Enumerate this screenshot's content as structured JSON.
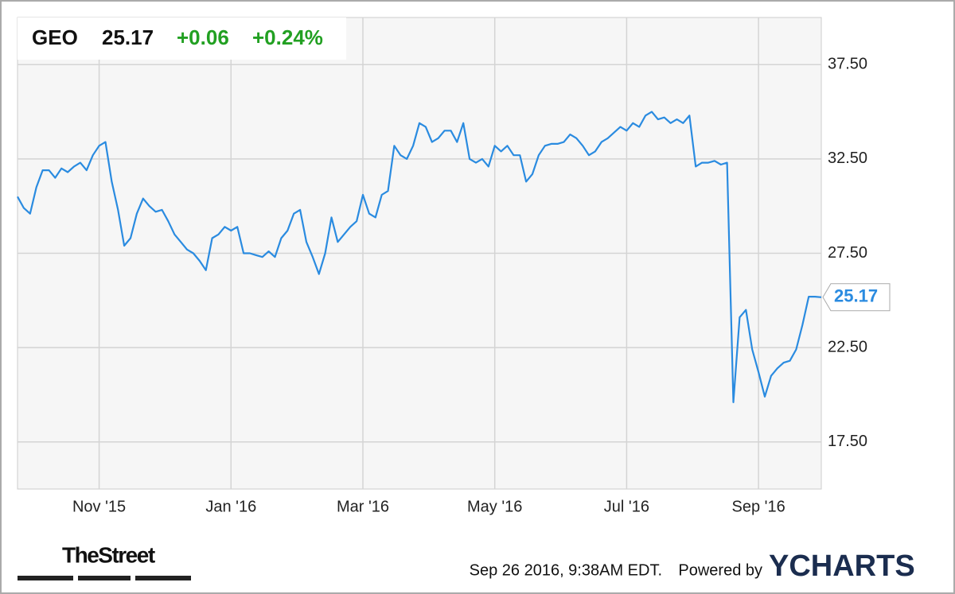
{
  "ticker": "GEO",
  "price": 25.17,
  "change": "+0.06",
  "change_pct": "+0.24%",
  "footer": {
    "brand": "TheStreet",
    "timestamp": "Sep 26 2016, 9:38AM EDT.",
    "powered": "Powered by",
    "provider": "YCHARTS"
  },
  "chart_data": {
    "type": "line",
    "color": "#2a8be0",
    "grid": true,
    "ylim": [
      15,
      40
    ],
    "yticks": [
      {
        "value": 17.5,
        "label": "17.50"
      },
      {
        "value": 22.5,
        "label": "22.50"
      },
      {
        "value": 27.5,
        "label": "27.50"
      },
      {
        "value": 32.5,
        "label": "32.50"
      },
      {
        "value": 37.5,
        "label": "37.50"
      }
    ],
    "categories": [
      null,
      null,
      null,
      null,
      null,
      null,
      null,
      null,
      null,
      null,
      null,
      null,
      null,
      "Nov '15",
      null,
      null,
      null,
      null,
      null,
      null,
      null,
      null,
      null,
      null,
      null,
      null,
      null,
      null,
      null,
      null,
      null,
      null,
      null,
      null,
      "Jan '16",
      null,
      null,
      null,
      null,
      null,
      null,
      null,
      null,
      null,
      null,
      null,
      null,
      null,
      null,
      null,
      null,
      null,
      null,
      null,
      null,
      "Mar '16",
      null,
      null,
      null,
      null,
      null,
      null,
      null,
      null,
      null,
      null,
      null,
      null,
      null,
      null,
      null,
      null,
      null,
      null,
      null,
      null,
      "May '16",
      null,
      null,
      null,
      null,
      null,
      null,
      null,
      null,
      null,
      null,
      null,
      null,
      null,
      null,
      null,
      null,
      null,
      null,
      null,
      null,
      "Jul '16",
      null,
      null,
      null,
      null,
      null,
      null,
      null,
      null,
      null,
      null,
      null,
      null,
      null,
      null,
      null,
      null,
      null,
      null,
      null,
      null,
      "Sep '16",
      null,
      null,
      null,
      null,
      null,
      null,
      null,
      null,
      null,
      null
    ],
    "values": [
      30.5,
      29.9,
      29.6,
      31.0,
      31.9,
      31.9,
      31.5,
      32.0,
      31.8,
      32.1,
      32.3,
      31.9,
      32.7,
      33.2,
      33.4,
      31.3,
      29.8,
      27.9,
      28.3,
      29.6,
      30.4,
      30.0,
      29.7,
      29.8,
      29.2,
      28.5,
      28.1,
      27.7,
      27.5,
      27.1,
      26.6,
      28.3,
      28.5,
      28.9,
      28.7,
      28.9,
      27.5,
      27.5,
      27.4,
      27.3,
      27.6,
      27.3,
      28.3,
      28.7,
      29.6,
      29.8,
      28.1,
      27.3,
      26.4,
      27.5,
      29.4,
      28.1,
      28.5,
      28.9,
      29.2,
      30.6,
      29.6,
      29.4,
      30.6,
      30.8,
      33.2,
      32.7,
      32.5,
      33.2,
      34.4,
      34.2,
      33.4,
      33.6,
      34.0,
      34.0,
      33.4,
      34.4,
      32.5,
      32.3,
      32.5,
      32.1,
      33.2,
      32.9,
      33.2,
      32.7,
      32.7,
      31.3,
      31.7,
      32.7,
      33.2,
      33.3,
      33.3,
      33.4,
      33.8,
      33.6,
      33.2,
      32.7,
      32.9,
      33.4,
      33.6,
      33.9,
      34.2,
      34.0,
      34.4,
      34.2,
      34.8,
      35.0,
      34.6,
      34.7,
      34.4,
      34.6,
      34.4,
      34.8,
      32.1,
      32.3,
      32.3,
      32.4,
      32.2,
      32.3,
      19.6,
      24.1,
      24.5,
      22.4,
      21.2,
      19.9,
      21.0,
      21.4,
      21.7,
      21.8,
      22.4,
      23.7,
      25.2,
      25.2,
      25.17
    ]
  }
}
